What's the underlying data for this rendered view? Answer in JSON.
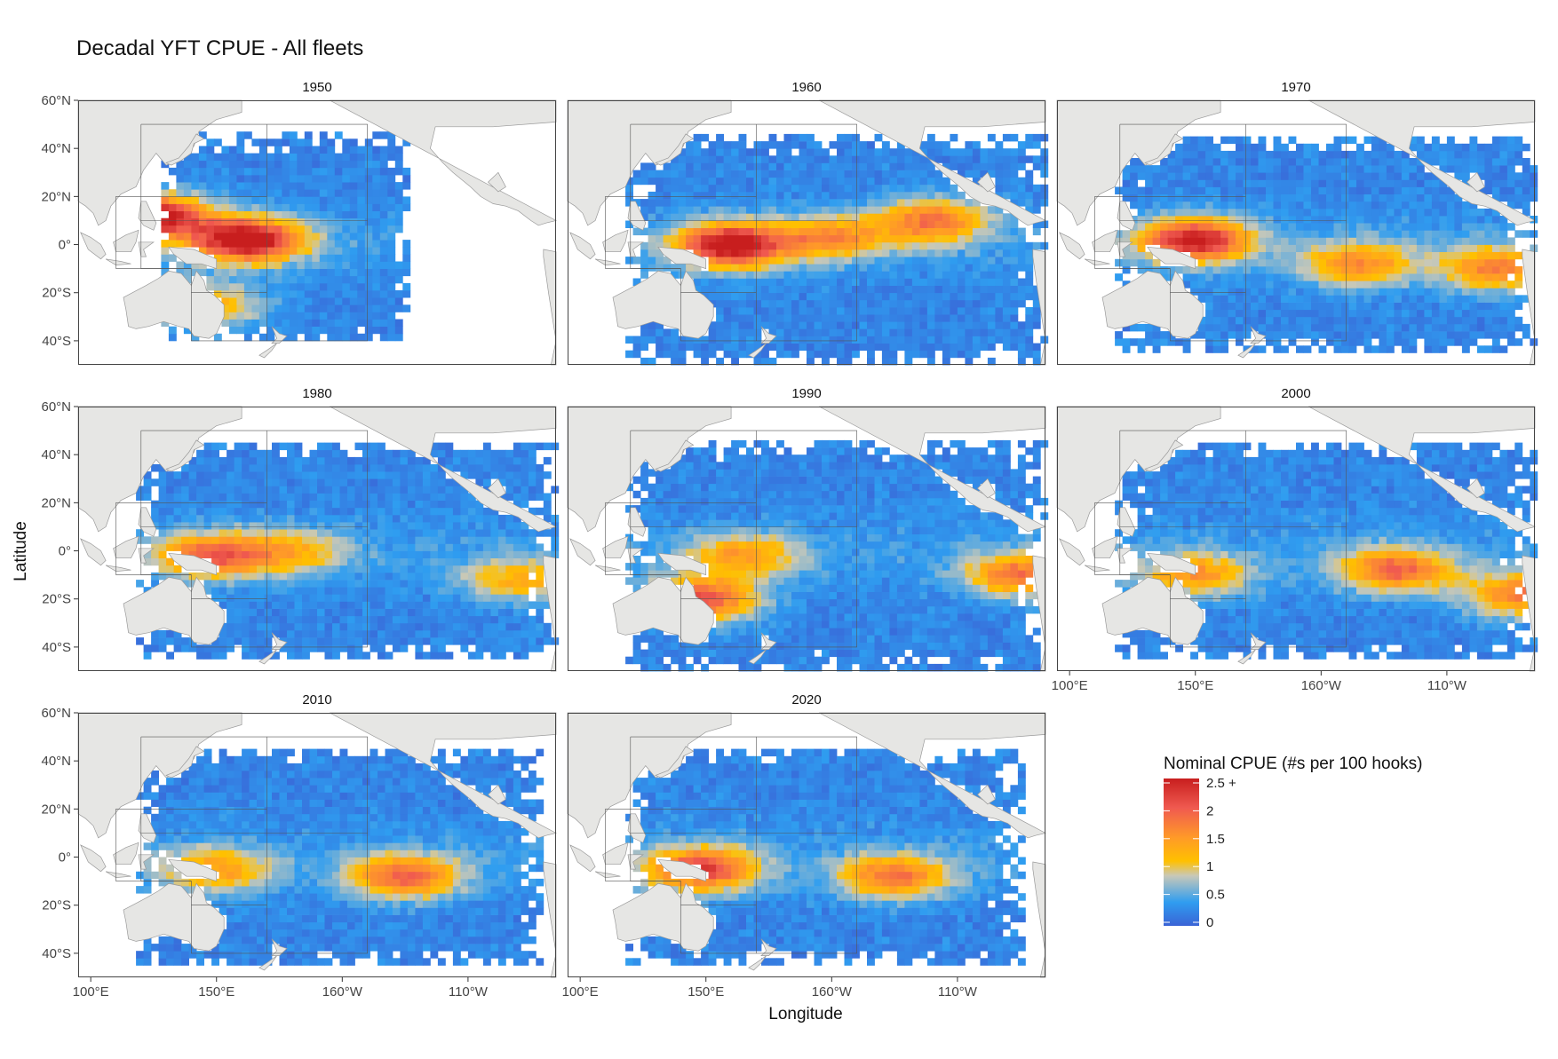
{
  "title": "Decadal YFT CPUE - All fleets",
  "x_axis_label": "Longitude",
  "y_axis_label": "Latitude",
  "lat_ticks": [
    "60°N",
    "40°N",
    "20°N",
    "0°",
    "20°S",
    "40°S"
  ],
  "lon_ticks": [
    "100°E",
    "150°E",
    "160°W",
    "110°W"
  ],
  "legend": {
    "title": "Nominal CPUE (#s per 100 hooks)",
    "labels": [
      "2.5 +",
      "2",
      "1.5",
      "1",
      "0.5",
      "0"
    ],
    "gradient_stops_low_to_high": [
      "#3a63d6",
      "#2f9df0",
      "#c8c8b8",
      "#ffc000",
      "#ff9a28",
      "#f05a50",
      "#c81e1e"
    ]
  },
  "colors": {
    "land": "#e6e6e4",
    "land_outline": "#9a9a9a",
    "frame": "#444444",
    "region_lines": "#555555"
  },
  "chart_data": {
    "type": "heatmap",
    "variable": "Nominal CPUE (#s per 100 hooks)",
    "value_range": [
      0,
      2.5
    ],
    "lat_range": [
      -50,
      60
    ],
    "lon_range_deg_east": [
      95,
      285
    ],
    "facets": [
      {
        "year": "1950",
        "extent": {
          "lon": [
            128,
            225
          ],
          "lat": [
            -40,
            45
          ]
        },
        "hotspots": [
          {
            "lon": 162,
            "lat": 2,
            "cpue": 2.5
          },
          {
            "lon": 125,
            "lat": 12,
            "cpue": 2.3
          },
          {
            "lon": 145,
            "lat": -25,
            "cpue": 1.1
          }
        ]
      },
      {
        "year": "1960",
        "extent": {
          "lon": [
            118,
            285
          ],
          "lat": [
            -50,
            45
          ]
        },
        "hotspots": [
          {
            "lon": 160,
            "lat": 0,
            "cpue": 2.4
          },
          {
            "lon": 200,
            "lat": 3,
            "cpue": 1.2
          },
          {
            "lon": 240,
            "lat": 10,
            "cpue": 1.5
          }
        ]
      },
      {
        "year": "1970",
        "extent": {
          "lon": [
            118,
            285
          ],
          "lat": [
            -45,
            45
          ]
        },
        "hotspots": [
          {
            "lon": 150,
            "lat": 2,
            "cpue": 2.2
          },
          {
            "lon": 215,
            "lat": -8,
            "cpue": 1.3
          },
          {
            "lon": 270,
            "lat": -10,
            "cpue": 1.4
          }
        ]
      },
      {
        "year": "1980",
        "extent": {
          "lon": [
            118,
            285
          ],
          "lat": [
            -45,
            45
          ]
        },
        "hotspots": [
          {
            "lon": 148,
            "lat": -2,
            "cpue": 1.6
          },
          {
            "lon": 180,
            "lat": 0,
            "cpue": 0.9
          },
          {
            "lon": 270,
            "lat": -12,
            "cpue": 1.0
          }
        ]
      },
      {
        "year": "1990",
        "extent": {
          "lon": [
            118,
            285
          ],
          "lat": [
            -50,
            45
          ]
        },
        "hotspots": [
          {
            "lon": 148,
            "lat": -20,
            "cpue": 1.8
          },
          {
            "lon": 165,
            "lat": -2,
            "cpue": 1.1
          },
          {
            "lon": 275,
            "lat": -10,
            "cpue": 1.5
          }
        ]
      },
      {
        "year": "2000",
        "extent": {
          "lon": [
            118,
            285
          ],
          "lat": [
            -45,
            45
          ]
        },
        "hotspots": [
          {
            "lon": 150,
            "lat": -10,
            "cpue": 1.2
          },
          {
            "lon": 230,
            "lat": -8,
            "cpue": 1.6
          },
          {
            "lon": 280,
            "lat": -18,
            "cpue": 1.5
          }
        ]
      },
      {
        "year": "2010",
        "extent": {
          "lon": [
            118,
            280
          ],
          "lat": [
            -45,
            45
          ]
        },
        "hotspots": [
          {
            "lon": 150,
            "lat": -5,
            "cpue": 1.1
          },
          {
            "lon": 225,
            "lat": -8,
            "cpue": 1.6
          }
        ]
      },
      {
        "year": "2020",
        "extent": {
          "lon": [
            118,
            275
          ],
          "lat": [
            -45,
            45
          ]
        },
        "hotspots": [
          {
            "lon": 148,
            "lat": -5,
            "cpue": 1.9
          },
          {
            "lon": 225,
            "lat": -8,
            "cpue": 1.5
          }
        ]
      }
    ]
  }
}
